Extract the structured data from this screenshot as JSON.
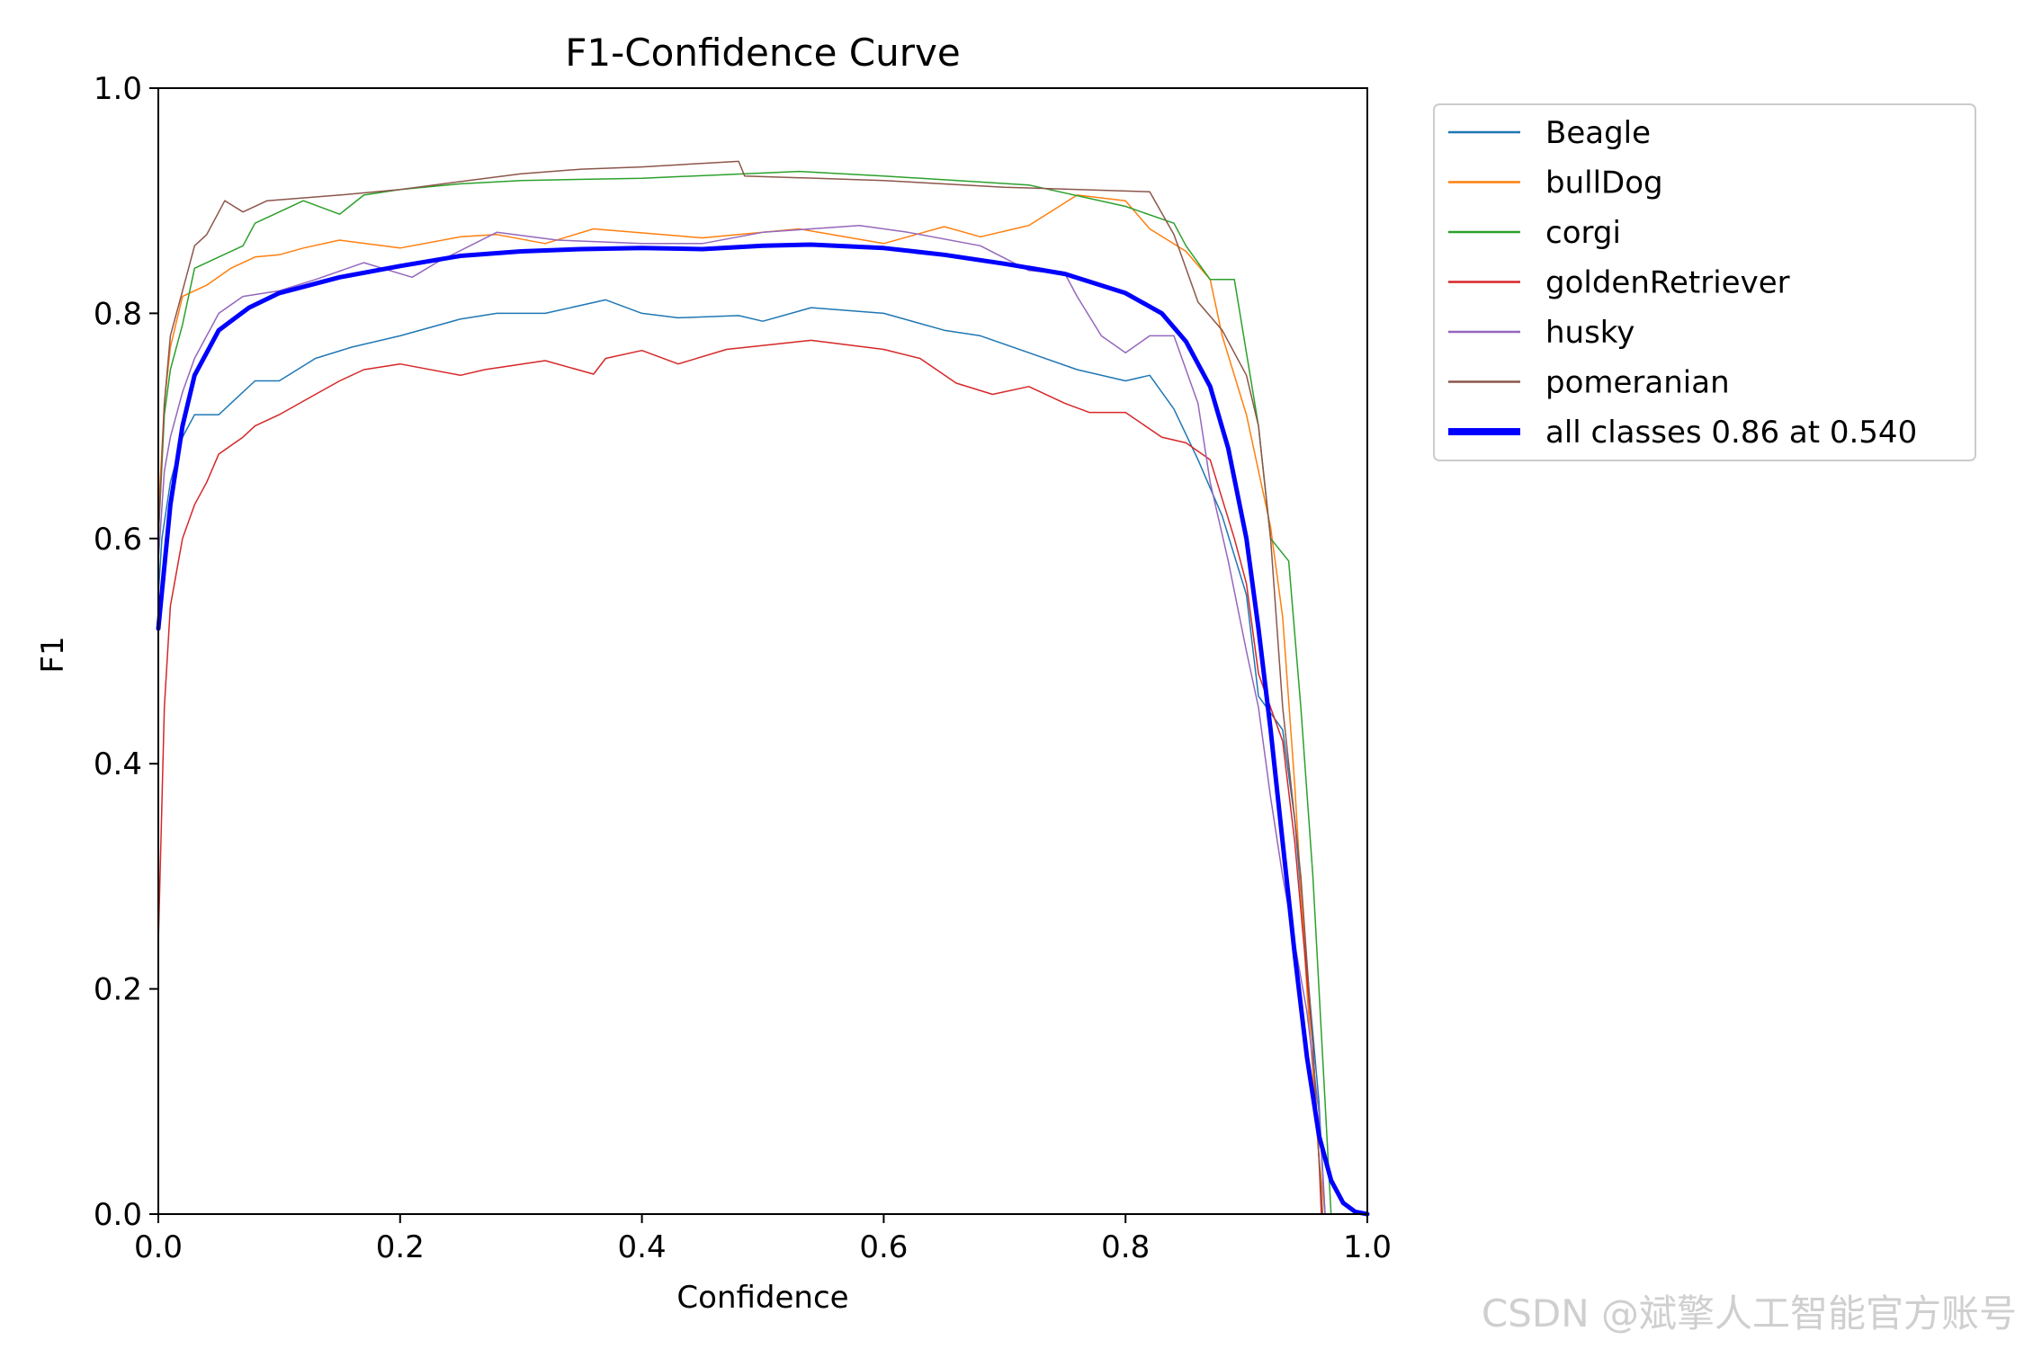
{
  "watermark": "CSDN @斌擎人工智能官方账号",
  "chart_data": {
    "type": "line",
    "title": "F1-Confidence Curve",
    "xlabel": "Confidence",
    "ylabel": "F1",
    "xlim": [
      0.0,
      1.0
    ],
    "ylim": [
      0.0,
      1.0
    ],
    "xticks": [
      "0.0",
      "0.2",
      "0.4",
      "0.6",
      "0.8",
      "1.0"
    ],
    "yticks": [
      "0.0",
      "0.2",
      "0.4",
      "0.6",
      "0.8",
      "1.0"
    ],
    "grid": false,
    "legend_position": "outside-top-right",
    "series": [
      {
        "name": "Beagle",
        "color": "#1f77b4",
        "width": 1.5,
        "points": [
          [
            0,
            0.55
          ],
          [
            0.003,
            0.6
          ],
          [
            0.01,
            0.65
          ],
          [
            0.02,
            0.69
          ],
          [
            0.03,
            0.71
          ],
          [
            0.05,
            0.71
          ],
          [
            0.06,
            0.72
          ],
          [
            0.08,
            0.74
          ],
          [
            0.1,
            0.74
          ],
          [
            0.13,
            0.76
          ],
          [
            0.16,
            0.77
          ],
          [
            0.2,
            0.78
          ],
          [
            0.25,
            0.795
          ],
          [
            0.28,
            0.8
          ],
          [
            0.32,
            0.8
          ],
          [
            0.37,
            0.812
          ],
          [
            0.4,
            0.8
          ],
          [
            0.43,
            0.796
          ],
          [
            0.48,
            0.798
          ],
          [
            0.5,
            0.793
          ],
          [
            0.54,
            0.805
          ],
          [
            0.6,
            0.8
          ],
          [
            0.65,
            0.785
          ],
          [
            0.68,
            0.78
          ],
          [
            0.72,
            0.765
          ],
          [
            0.76,
            0.75
          ],
          [
            0.8,
            0.74
          ],
          [
            0.82,
            0.745
          ],
          [
            0.84,
            0.715
          ],
          [
            0.86,
            0.67
          ],
          [
            0.88,
            0.62
          ],
          [
            0.9,
            0.55
          ],
          [
            0.91,
            0.46
          ],
          [
            0.93,
            0.43
          ],
          [
            0.94,
            0.35
          ],
          [
            0.95,
            0.22
          ],
          [
            0.96,
            0.1
          ],
          [
            0.965,
            0.0
          ]
        ]
      },
      {
        "name": "bullDog",
        "color": "#ff7f0e",
        "width": 1.5,
        "points": [
          [
            0,
            0.62
          ],
          [
            0.005,
            0.72
          ],
          [
            0.01,
            0.77
          ],
          [
            0.02,
            0.815
          ],
          [
            0.04,
            0.825
          ],
          [
            0.06,
            0.84
          ],
          [
            0.08,
            0.85
          ],
          [
            0.1,
            0.852
          ],
          [
            0.12,
            0.858
          ],
          [
            0.15,
            0.865
          ],
          [
            0.2,
            0.858
          ],
          [
            0.25,
            0.868
          ],
          [
            0.28,
            0.87
          ],
          [
            0.32,
            0.862
          ],
          [
            0.36,
            0.875
          ],
          [
            0.45,
            0.867
          ],
          [
            0.53,
            0.875
          ],
          [
            0.6,
            0.862
          ],
          [
            0.65,
            0.877
          ],
          [
            0.68,
            0.868
          ],
          [
            0.72,
            0.878
          ],
          [
            0.76,
            0.905
          ],
          [
            0.8,
            0.9
          ],
          [
            0.82,
            0.875
          ],
          [
            0.85,
            0.855
          ],
          [
            0.87,
            0.83
          ],
          [
            0.88,
            0.78
          ],
          [
            0.9,
            0.71
          ],
          [
            0.92,
            0.61
          ],
          [
            0.93,
            0.53
          ],
          [
            0.94,
            0.38
          ],
          [
            0.95,
            0.2
          ],
          [
            0.96,
            0.05
          ],
          [
            0.965,
            0.0
          ]
        ]
      },
      {
        "name": "corgi",
        "color": "#2ca02c",
        "width": 1.5,
        "points": [
          [
            0,
            0.6
          ],
          [
            0.005,
            0.71
          ],
          [
            0.01,
            0.75
          ],
          [
            0.02,
            0.79
          ],
          [
            0.03,
            0.84
          ],
          [
            0.05,
            0.85
          ],
          [
            0.07,
            0.86
          ],
          [
            0.08,
            0.88
          ],
          [
            0.1,
            0.89
          ],
          [
            0.12,
            0.9
          ],
          [
            0.15,
            0.888
          ],
          [
            0.17,
            0.905
          ],
          [
            0.2,
            0.91
          ],
          [
            0.25,
            0.915
          ],
          [
            0.3,
            0.918
          ],
          [
            0.4,
            0.92
          ],
          [
            0.53,
            0.926
          ],
          [
            0.6,
            0.922
          ],
          [
            0.72,
            0.914
          ],
          [
            0.8,
            0.895
          ],
          [
            0.84,
            0.88
          ],
          [
            0.85,
            0.86
          ],
          [
            0.87,
            0.83
          ],
          [
            0.89,
            0.83
          ],
          [
            0.91,
            0.7
          ],
          [
            0.92,
            0.6
          ],
          [
            0.935,
            0.58
          ],
          [
            0.945,
            0.45
          ],
          [
            0.955,
            0.3
          ],
          [
            0.965,
            0.1
          ],
          [
            0.97,
            0.0
          ]
        ]
      },
      {
        "name": "goldenRetriever",
        "color": "#d62728",
        "width": 1.5,
        "points": [
          [
            0,
            0.24
          ],
          [
            0.005,
            0.45
          ],
          [
            0.01,
            0.54
          ],
          [
            0.02,
            0.6
          ],
          [
            0.03,
            0.63
          ],
          [
            0.04,
            0.65
          ],
          [
            0.05,
            0.675
          ],
          [
            0.07,
            0.69
          ],
          [
            0.08,
            0.7
          ],
          [
            0.1,
            0.71
          ],
          [
            0.13,
            0.728
          ],
          [
            0.15,
            0.74
          ],
          [
            0.17,
            0.75
          ],
          [
            0.2,
            0.755
          ],
          [
            0.25,
            0.745
          ],
          [
            0.27,
            0.75
          ],
          [
            0.32,
            0.758
          ],
          [
            0.36,
            0.746
          ],
          [
            0.37,
            0.76
          ],
          [
            0.4,
            0.767
          ],
          [
            0.43,
            0.755
          ],
          [
            0.47,
            0.768
          ],
          [
            0.54,
            0.776
          ],
          [
            0.6,
            0.768
          ],
          [
            0.63,
            0.76
          ],
          [
            0.66,
            0.738
          ],
          [
            0.69,
            0.728
          ],
          [
            0.72,
            0.735
          ],
          [
            0.75,
            0.72
          ],
          [
            0.77,
            0.712
          ],
          [
            0.8,
            0.712
          ],
          [
            0.83,
            0.69
          ],
          [
            0.85,
            0.685
          ],
          [
            0.87,
            0.67
          ],
          [
            0.89,
            0.6
          ],
          [
            0.9,
            0.56
          ],
          [
            0.91,
            0.48
          ],
          [
            0.93,
            0.42
          ],
          [
            0.94,
            0.33
          ],
          [
            0.955,
            0.15
          ],
          [
            0.96,
            0.05
          ],
          [
            0.962,
            0.0
          ]
        ]
      },
      {
        "name": "husky",
        "color": "#9467bd",
        "width": 1.5,
        "points": [
          [
            0,
            0.58
          ],
          [
            0.005,
            0.66
          ],
          [
            0.01,
            0.69
          ],
          [
            0.02,
            0.73
          ],
          [
            0.03,
            0.76
          ],
          [
            0.05,
            0.8
          ],
          [
            0.07,
            0.815
          ],
          [
            0.1,
            0.82
          ],
          [
            0.13,
            0.83
          ],
          [
            0.17,
            0.845
          ],
          [
            0.21,
            0.832
          ],
          [
            0.23,
            0.845
          ],
          [
            0.28,
            0.872
          ],
          [
            0.33,
            0.865
          ],
          [
            0.4,
            0.862
          ],
          [
            0.45,
            0.862
          ],
          [
            0.5,
            0.872
          ],
          [
            0.58,
            0.878
          ],
          [
            0.62,
            0.872
          ],
          [
            0.68,
            0.86
          ],
          [
            0.72,
            0.838
          ],
          [
            0.75,
            0.835
          ],
          [
            0.76,
            0.815
          ],
          [
            0.78,
            0.78
          ],
          [
            0.8,
            0.765
          ],
          [
            0.82,
            0.78
          ],
          [
            0.84,
            0.78
          ],
          [
            0.85,
            0.75
          ],
          [
            0.86,
            0.72
          ],
          [
            0.87,
            0.65
          ],
          [
            0.885,
            0.58
          ],
          [
            0.9,
            0.5
          ],
          [
            0.91,
            0.45
          ],
          [
            0.92,
            0.37
          ],
          [
            0.93,
            0.3
          ],
          [
            0.94,
            0.24
          ],
          [
            0.95,
            0.18
          ],
          [
            0.96,
            0.09
          ],
          [
            0.965,
            0.0
          ]
        ]
      },
      {
        "name": "pomeranian",
        "color": "#8c564b",
        "width": 1.5,
        "points": [
          [
            0,
            0.6
          ],
          [
            0.005,
            0.72
          ],
          [
            0.01,
            0.78
          ],
          [
            0.02,
            0.82
          ],
          [
            0.03,
            0.86
          ],
          [
            0.04,
            0.87
          ],
          [
            0.055,
            0.9
          ],
          [
            0.07,
            0.89
          ],
          [
            0.09,
            0.9
          ],
          [
            0.15,
            0.905
          ],
          [
            0.2,
            0.91
          ],
          [
            0.25,
            0.917
          ],
          [
            0.3,
            0.924
          ],
          [
            0.35,
            0.928
          ],
          [
            0.4,
            0.93
          ],
          [
            0.48,
            0.935
          ],
          [
            0.485,
            0.922
          ],
          [
            0.6,
            0.918
          ],
          [
            0.7,
            0.912
          ],
          [
            0.82,
            0.908
          ],
          [
            0.84,
            0.87
          ],
          [
            0.86,
            0.81
          ],
          [
            0.88,
            0.785
          ],
          [
            0.9,
            0.745
          ],
          [
            0.91,
            0.7
          ],
          [
            0.92,
            0.6
          ],
          [
            0.93,
            0.45
          ],
          [
            0.945,
            0.3
          ],
          [
            0.955,
            0.15
          ],
          [
            0.96,
            0.05
          ],
          [
            0.963,
            0.0
          ]
        ]
      },
      {
        "name": "all classes 0.86 at 0.540",
        "color": "#0000ff",
        "width": 5,
        "points": [
          [
            0,
            0.52
          ],
          [
            0.01,
            0.63
          ],
          [
            0.02,
            0.7
          ],
          [
            0.03,
            0.745
          ],
          [
            0.05,
            0.785
          ],
          [
            0.075,
            0.805
          ],
          [
            0.1,
            0.818
          ],
          [
            0.15,
            0.832
          ],
          [
            0.2,
            0.842
          ],
          [
            0.25,
            0.851
          ],
          [
            0.3,
            0.855
          ],
          [
            0.35,
            0.857
          ],
          [
            0.4,
            0.858
          ],
          [
            0.45,
            0.857
          ],
          [
            0.5,
            0.86
          ],
          [
            0.54,
            0.861
          ],
          [
            0.6,
            0.858
          ],
          [
            0.65,
            0.852
          ],
          [
            0.7,
            0.844
          ],
          [
            0.75,
            0.835
          ],
          [
            0.8,
            0.818
          ],
          [
            0.83,
            0.8
          ],
          [
            0.85,
            0.775
          ],
          [
            0.87,
            0.735
          ],
          [
            0.885,
            0.68
          ],
          [
            0.9,
            0.6
          ],
          [
            0.91,
            0.52
          ],
          [
            0.92,
            0.43
          ],
          [
            0.93,
            0.33
          ],
          [
            0.94,
            0.23
          ],
          [
            0.95,
            0.14
          ],
          [
            0.96,
            0.07
          ],
          [
            0.97,
            0.03
          ],
          [
            0.98,
            0.01
          ],
          [
            0.99,
            0.002
          ],
          [
            1.0,
            0.0
          ]
        ]
      }
    ]
  }
}
